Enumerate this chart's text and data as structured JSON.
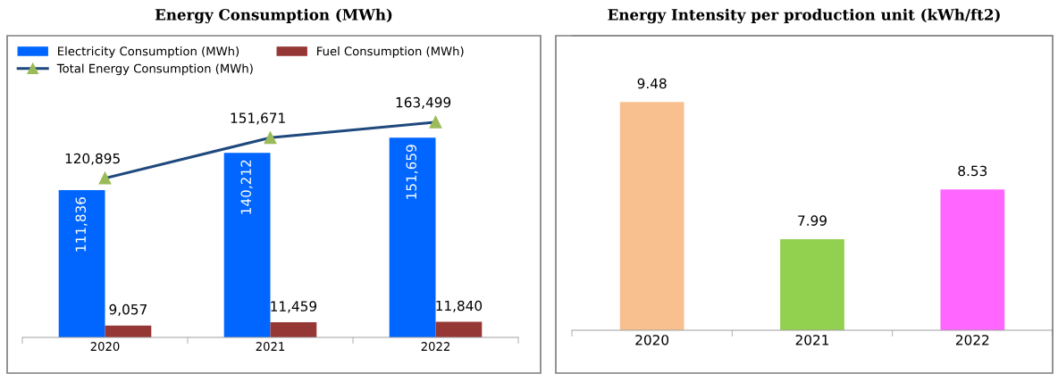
{
  "chart_data": [
    {
      "type": "bar",
      "title": "Energy Consumption (MWh)",
      "categories": [
        "2020",
        "2021",
        "2022"
      ],
      "series": [
        {
          "name": "Electricity Consumption (MWh)",
          "color": "#0066ff",
          "values": [
            111836,
            140212,
            151659
          ],
          "value_labels": [
            "111,836",
            "140,212",
            "151,659"
          ]
        },
        {
          "name": "Fuel Consumption (MWh)",
          "color": "#953735",
          "values": [
            9057,
            11459,
            11840
          ],
          "value_labels": [
            "9,057",
            "11,459",
            "11,840"
          ]
        },
        {
          "name": "Total Energy Consumption (MWh)",
          "type": "line",
          "color": "#1f497d",
          "marker": "triangle",
          "values": [
            120895,
            151671,
            163499
          ],
          "value_labels": [
            "120,895",
            "151,671",
            "163,499"
          ]
        }
      ],
      "legend": "top left",
      "tick_labels": "x",
      "grid": false
    },
    {
      "type": "bar",
      "title": "Energy Intensity per production unit (kWh/ft2)",
      "categories": [
        "2020",
        "2021",
        "2022"
      ],
      "values": [
        9.48,
        7.99,
        8.53
      ],
      "colors": [
        "#f9c08f",
        "#92d050",
        "#ff66ff"
      ],
      "ylim": [
        7,
        10.2
      ],
      "data_labels": true,
      "tick_labels": "x",
      "grid": false
    }
  ]
}
